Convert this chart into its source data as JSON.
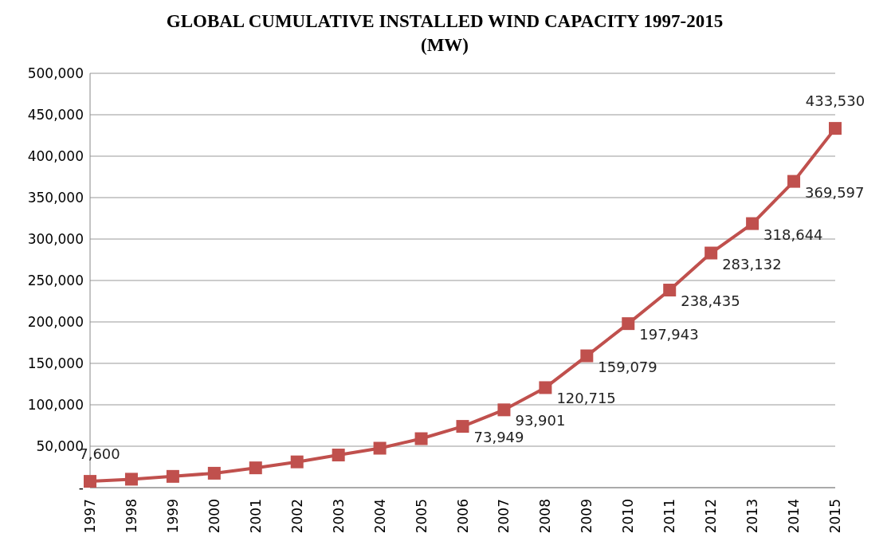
{
  "chart_data": {
    "type": "line",
    "title": "GLOBAL CUMULATIVE INSTALLED WIND CAPACITY 1997-2015 (MW)",
    "categories": [
      "1997",
      "1998",
      "1999",
      "2000",
      "2001",
      "2002",
      "2003",
      "2004",
      "2005",
      "2006",
      "2007",
      "2008",
      "2009",
      "2010",
      "2011",
      "2012",
      "2013",
      "2014",
      "2015"
    ],
    "series": [
      {
        "color": "#c0504d",
        "values": [
          7600,
          10200,
          13600,
          17400,
          23900,
          31100,
          39400,
          47600,
          59100,
          73949,
          93901,
          120715,
          159079,
          197943,
          238435,
          283132,
          318644,
          369597,
          433530
        ],
        "value_labels": [
          "7,600",
          null,
          null,
          null,
          null,
          null,
          null,
          null,
          null,
          "73,949",
          "93,901",
          "120,715",
          "159,079",
          "197,943",
          "238,435",
          "283,132",
          "318,644",
          "369,597",
          "433,530"
        ]
      }
    ],
    "ylim": [
      0,
      500000
    ],
    "yticks": [
      {
        "value": 0,
        "label": "-"
      },
      {
        "value": 50000,
        "label": "50,000"
      },
      {
        "value": 100000,
        "label": "100,000"
      },
      {
        "value": 150000,
        "label": "150,000"
      },
      {
        "value": 200000,
        "label": "200,000"
      },
      {
        "value": 250000,
        "label": "250,000"
      },
      {
        "value": 300000,
        "label": "300,000"
      },
      {
        "value": 350000,
        "label": "350,000"
      },
      {
        "value": 400000,
        "label": "400,000"
      },
      {
        "value": 450000,
        "label": "450,000"
      },
      {
        "value": 500000,
        "label": "500,000"
      }
    ],
    "grid": "y",
    "marker": "square",
    "line_style": "solid"
  }
}
